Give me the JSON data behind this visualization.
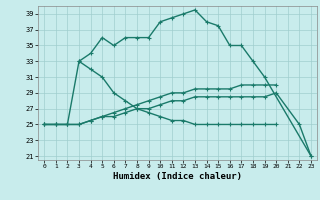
{
  "xlabel": "Humidex (Indice chaleur)",
  "bg_color": "#c8ecec",
  "grid_color": "#a0cece",
  "line_color": "#1a7a6a",
  "xlim": [
    -0.5,
    23.5
  ],
  "ylim": [
    20.5,
    40
  ],
  "yticks": [
    21,
    23,
    25,
    27,
    29,
    31,
    33,
    35,
    37,
    39
  ],
  "xticks": [
    0,
    1,
    2,
    3,
    4,
    5,
    6,
    7,
    8,
    9,
    10,
    11,
    12,
    13,
    14,
    15,
    16,
    17,
    18,
    19,
    20,
    21,
    22,
    23
  ],
  "line1_x": [
    3,
    4,
    5,
    6,
    7,
    8,
    9,
    10,
    11,
    12,
    13,
    14,
    15,
    16,
    17,
    18,
    19,
    23
  ],
  "line1_y": [
    33,
    34,
    36,
    35,
    36,
    36,
    36,
    38,
    38.5,
    39,
    39.5,
    38,
    37.5,
    35,
    35,
    33,
    31,
    21
  ],
  "line2_x": [
    0,
    1,
    2,
    3,
    4,
    5,
    6,
    7,
    8,
    9,
    10,
    11,
    12,
    13,
    14,
    15,
    16,
    17,
    18,
    19,
    20
  ],
  "line2_y": [
    25,
    25,
    25,
    33,
    32,
    31,
    29,
    28,
    27,
    26.5,
    26,
    25.5,
    25.5,
    25,
    25,
    25,
    25,
    25,
    25,
    25,
    25
  ],
  "line3_x": [
    0,
    1,
    2,
    3,
    4,
    5,
    6,
    7,
    8,
    9,
    10,
    11,
    12,
    13,
    14,
    15,
    16,
    17,
    18,
    19,
    20
  ],
  "line3_y": [
    25,
    25,
    25,
    25,
    25.5,
    26,
    26.5,
    27,
    27.5,
    28,
    28.5,
    29,
    29,
    29.5,
    29.5,
    29.5,
    29.5,
    30,
    30,
    30,
    30
  ],
  "line4_x": [
    0,
    1,
    2,
    3,
    4,
    5,
    6,
    7,
    8,
    9,
    10,
    11,
    12,
    13,
    14,
    15,
    16,
    17,
    18,
    19,
    20,
    22,
    23
  ],
  "line4_y": [
    25,
    25,
    25,
    25,
    25.5,
    26,
    26,
    26.5,
    27,
    27,
    27.5,
    28,
    28,
    28.5,
    28.5,
    28.5,
    28.5,
    28.5,
    28.5,
    28.5,
    29,
    25,
    21
  ]
}
